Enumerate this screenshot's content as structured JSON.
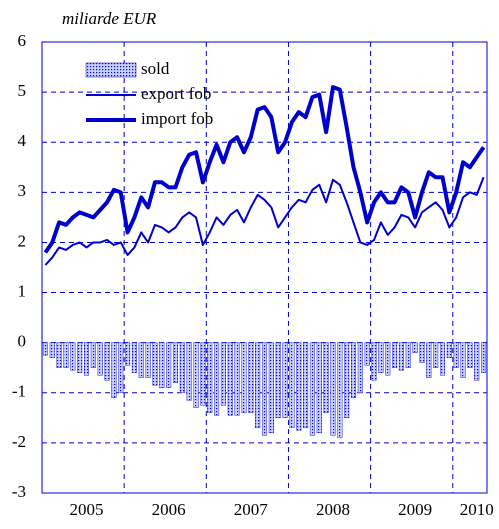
{
  "chart_data": {
    "type": "bar+line",
    "title": "miliarde EUR",
    "categories": [
      null,
      null,
      null,
      null,
      null,
      null,
      "2005",
      null,
      null,
      null,
      null,
      null,
      null,
      null,
      null,
      null,
      null,
      null,
      "2006",
      null,
      null,
      null,
      null,
      null,
      null,
      null,
      null,
      null,
      null,
      null,
      "2007",
      null,
      null,
      null,
      null,
      null,
      null,
      null,
      null,
      null,
      null,
      null,
      "2008",
      null,
      null,
      null,
      null,
      null,
      null,
      null,
      null,
      null,
      null,
      null,
      "2009",
      null,
      null,
      null,
      null,
      null,
      null,
      null,
      null,
      "2010",
      null
    ],
    "series": [
      {
        "name": "sold",
        "type": "bar",
        "color": "#0000cc",
        "values": [
          -0.25,
          -0.3,
          -0.5,
          -0.5,
          -0.55,
          -0.6,
          -0.65,
          -0.5,
          -0.65,
          -0.75,
          -1.1,
          -1.0,
          -0.45,
          -0.6,
          -0.7,
          -0.7,
          -0.85,
          -0.9,
          -0.9,
          -0.8,
          -1.0,
          -1.15,
          -1.3,
          -1.25,
          -1.4,
          -1.45,
          -1.25,
          -1.45,
          -1.45,
          -1.4,
          -1.4,
          -1.7,
          -1.85,
          -1.8,
          -1.5,
          -1.5,
          -1.7,
          -1.75,
          -1.7,
          -1.85,
          -1.8,
          -1.4,
          -1.85,
          -1.9,
          -1.5,
          -1.1,
          -1.0,
          -0.45,
          -0.75,
          -0.6,
          -0.65,
          -0.5,
          -0.55,
          -0.5,
          -0.2,
          -0.4,
          -0.7,
          -0.5,
          -0.65,
          -0.3,
          -0.5,
          -0.7,
          -0.5,
          -0.75,
          -0.6
        ]
      },
      {
        "name": "export fob",
        "type": "line",
        "color": "#0000cc",
        "values": [
          1.55,
          1.7,
          1.9,
          1.85,
          1.95,
          2.0,
          1.9,
          2.0,
          2.0,
          2.05,
          1.95,
          2.0,
          1.75,
          1.9,
          2.2,
          2.0,
          2.35,
          2.3,
          2.2,
          2.3,
          2.5,
          2.6,
          2.5,
          1.95,
          2.2,
          2.5,
          2.35,
          2.55,
          2.65,
          2.4,
          2.7,
          2.95,
          2.85,
          2.7,
          2.3,
          2.5,
          2.7,
          2.85,
          2.8,
          3.05,
          3.15,
          2.8,
          3.25,
          3.15,
          2.8,
          2.4,
          2.0,
          1.95,
          2.05,
          2.4,
          2.15,
          2.3,
          2.55,
          2.5,
          2.3,
          2.6,
          2.7,
          2.8,
          2.65,
          2.3,
          2.5,
          2.9,
          3.0,
          2.95,
          3.3
        ]
      },
      {
        "name": "import fob",
        "type": "line",
        "color": "#0000cc",
        "values": [
          1.8,
          2.0,
          2.4,
          2.35,
          2.5,
          2.6,
          2.55,
          2.5,
          2.65,
          2.8,
          3.05,
          3.0,
          2.2,
          2.5,
          2.9,
          2.7,
          3.2,
          3.2,
          3.1,
          3.1,
          3.5,
          3.75,
          3.8,
          3.2,
          3.6,
          3.95,
          3.6,
          4.0,
          4.1,
          3.8,
          4.1,
          4.65,
          4.7,
          4.5,
          3.8,
          4.0,
          4.4,
          4.6,
          4.5,
          4.9,
          4.95,
          4.2,
          5.1,
          5.05,
          4.3,
          3.5,
          3.0,
          2.4,
          2.8,
          3.0,
          2.8,
          2.8,
          3.1,
          3.0,
          2.5,
          3.0,
          3.4,
          3.3,
          3.3,
          2.6,
          3.0,
          3.6,
          3.5,
          3.7,
          3.9
        ]
      }
    ],
    "ylim": [
      -3,
      6
    ],
    "yticks": [
      -3,
      -2,
      -1,
      0,
      1,
      2,
      3,
      4,
      5,
      6
    ],
    "grid": true,
    "legend": "upper left"
  }
}
